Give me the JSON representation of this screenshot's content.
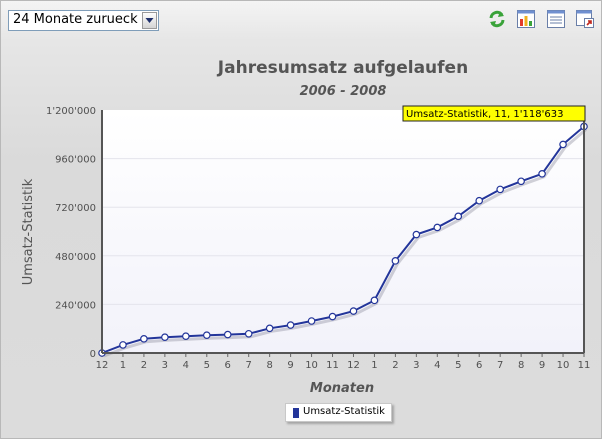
{
  "toolbar": {
    "range_select_value": "24 Monate zurueck",
    "icons": [
      "refresh-icon",
      "bar-chart-icon",
      "list-view-icon",
      "export-icon"
    ]
  },
  "colors": {
    "line": "#23359a",
    "tooltip_bg": "#ffff00",
    "plot_bg": "#f7f7fd"
  },
  "tooltip": "Umsatz-Statistik, 11, 1'118'633",
  "chart_data": {
    "type": "line",
    "title": "Jahresumsatz aufgelaufen",
    "subtitle": "2006 - 2008",
    "xlabel": "Monaten",
    "ylabel": "Umsatz-Statistik",
    "ylim": [
      0,
      1200000
    ],
    "yticks": [
      "0",
      "240'000",
      "480'000",
      "720'000",
      "960'000",
      "1'200'000"
    ],
    "ytick_values": [
      0,
      240000,
      480000,
      720000,
      960000,
      1200000
    ],
    "categories": [
      "12",
      "1",
      "2",
      "3",
      "4",
      "5",
      "6",
      "7",
      "8",
      "9",
      "10",
      "11",
      "12",
      "1",
      "2",
      "3",
      "4",
      "5",
      "6",
      "7",
      "8",
      "9",
      "10",
      "11"
    ],
    "grid": true,
    "legend_position": "bottom",
    "series": [
      {
        "name": "Umsatz-Statistik",
        "values": [
          0,
          40000,
          70000,
          78000,
          83000,
          88000,
          91000,
          95000,
          122000,
          138000,
          158000,
          180000,
          207000,
          260000,
          455000,
          585000,
          620000,
          675000,
          752000,
          808000,
          848000,
          885000,
          1030000,
          1118633
        ]
      }
    ]
  }
}
